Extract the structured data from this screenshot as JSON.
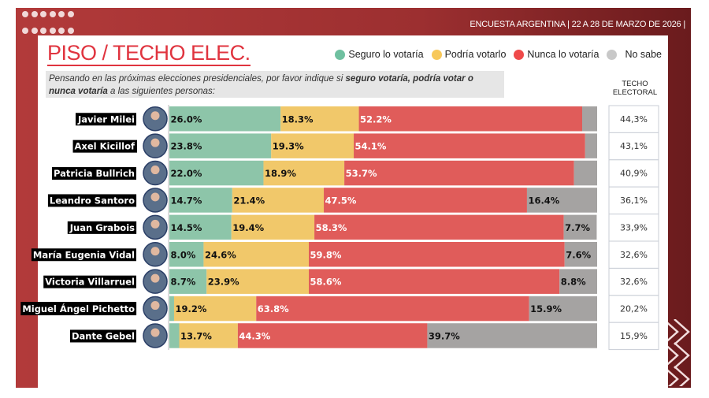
{
  "header": {
    "survey": "ENCUESTA ARGENTINA | 22 A 28 DE MARZO DE 2026  |"
  },
  "colors": {
    "seguro": "#8dc5a9",
    "podria": "#f1c86a",
    "nunca": "#e05c5a",
    "nosabe": "#a5a3a2",
    "accent": "#e0343f"
  },
  "chart_data": {
    "type": "bar",
    "orientation": "horizontal-stacked",
    "title": "PISO / TECHO ELEC.",
    "question_parts": [
      "Pensando en las próximas elecciones presidenciales, por favor indique si ",
      "seguro votaría, podría votar o nunca votaría",
      " a las siguientes personas:"
    ],
    "legend": [
      "Seguro lo votaría",
      "Podría votarlo",
      "Nunca lo votaría",
      "No sabe"
    ],
    "legend_position": "top-right",
    "xlim": [
      0,
      100
    ],
    "categories": [
      "Javier Milei",
      "Axel Kicillof",
      "Patricia Bullrich",
      "Leandro Santoro",
      "Juan Grabois",
      "María Eugenia Vidal",
      "Victoria Villarruel",
      "Miguel Ángel Pichetto",
      "Dante Gebel"
    ],
    "series": [
      {
        "name": "Seguro lo votaría",
        "values": [
          26.0,
          23.8,
          22.0,
          14.7,
          14.5,
          8.0,
          8.7,
          1.1,
          2.3
        ]
      },
      {
        "name": "Podría votarlo",
        "values": [
          18.3,
          19.3,
          18.9,
          21.4,
          19.4,
          24.6,
          23.9,
          19.2,
          13.7
        ]
      },
      {
        "name": "Nunca lo votaría",
        "values": [
          52.2,
          54.1,
          53.7,
          47.5,
          58.3,
          59.8,
          58.6,
          63.8,
          44.3
        ]
      },
      {
        "name": "No sabe",
        "values": [
          3.5,
          2.8,
          5.4,
          16.4,
          7.7,
          7.6,
          8.8,
          15.9,
          39.7
        ]
      }
    ],
    "techo_header": "TECHO ELECTORAL",
    "techo": [
      "44,3%",
      "43,1%",
      "40,9%",
      "36,1%",
      "33,9%",
      "32,6%",
      "32,6%",
      "20,2%",
      "15,9%"
    ]
  }
}
